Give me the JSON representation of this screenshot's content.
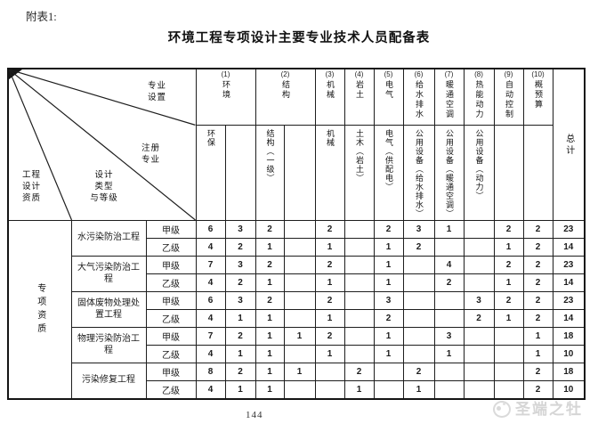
{
  "page": {
    "annex_label": "附表1:",
    "title": "环境工程专项设计主要专业技术人员配备表",
    "page_number": "144",
    "watermark": "圣端之牡"
  },
  "table": {
    "corner": {
      "specialty": "专业\n设置",
      "registered": "注册\n专业",
      "design_type": "设计\n类型\n与等级",
      "qualification": "工程\n设计\n资质"
    },
    "specialty_row": [
      {
        "num": "(1)",
        "name": "环境",
        "span": 2
      },
      {
        "num": "(2)",
        "name": "结构",
        "span": 2
      },
      {
        "num": "(3)",
        "name": "机械",
        "span": 1
      },
      {
        "num": "(4)",
        "name": "岩土",
        "span": 1
      },
      {
        "num": "(5)",
        "name": "电气",
        "span": 1
      },
      {
        "num": "(6)",
        "name": "给水排水",
        "span": 1
      },
      {
        "num": "(7)",
        "name": "暖通空调",
        "span": 1
      },
      {
        "num": "(8)",
        "name": "热能动力",
        "span": 1
      },
      {
        "num": "(9)",
        "name": "自动控制",
        "span": 1
      },
      {
        "num": "(10)",
        "name": "概预算",
        "span": 1
      }
    ],
    "registered_row": [
      "环保",
      "",
      "结构（一级）",
      "",
      "机械",
      "土木（岩土）",
      "电气（供配电）",
      "公用设备（给水排水）",
      "公用设备（暖通空调）",
      "公用设备（动力）",
      "",
      ""
    ],
    "total_label": "总计",
    "qualification_label": "专项资质",
    "groups": [
      {
        "type": "水污染防治工程",
        "rows": [
          {
            "grade": "甲级",
            "values": [
              "6",
              "3",
              "2",
              "",
              "2",
              "",
              "2",
              "3",
              "1",
              "",
              "2",
              "2"
            ],
            "total": "23"
          },
          {
            "grade": "乙级",
            "values": [
              "4",
              "2",
              "1",
              "",
              "1",
              "",
              "1",
              "2",
              "",
              "",
              "1",
              "2"
            ],
            "total": "14"
          }
        ]
      },
      {
        "type": "大气污染防治工程",
        "rows": [
          {
            "grade": "甲级",
            "values": [
              "7",
              "3",
              "2",
              "",
              "2",
              "",
              "1",
              "",
              "4",
              "",
              "2",
              "2"
            ],
            "total": "23"
          },
          {
            "grade": "乙级",
            "values": [
              "4",
              "2",
              "1",
              "",
              "1",
              "",
              "1",
              "",
              "2",
              "",
              "1",
              "2"
            ],
            "total": "14"
          }
        ]
      },
      {
        "type": "固体废物处理处置工程",
        "rows": [
          {
            "grade": "甲级",
            "values": [
              "6",
              "3",
              "2",
              "",
              "2",
              "",
              "3",
              "",
              "",
              "3",
              "2",
              "2"
            ],
            "total": "23"
          },
          {
            "grade": "乙级",
            "values": [
              "4",
              "1",
              "1",
              "",
              "1",
              "",
              "2",
              "",
              "",
              "2",
              "1",
              "2"
            ],
            "total": "14"
          }
        ]
      },
      {
        "type": "物理污染防治工程",
        "rows": [
          {
            "grade": "甲级",
            "values": [
              "7",
              "2",
              "1",
              "1",
              "2",
              "",
              "1",
              "",
              "3",
              "",
              "",
              "1"
            ],
            "total": "18"
          },
          {
            "grade": "乙级",
            "values": [
              "4",
              "1",
              "1",
              "",
              "1",
              "",
              "1",
              "",
              "1",
              "",
              "",
              "1"
            ],
            "total": "10"
          }
        ]
      },
      {
        "type": "污染修复工程",
        "rows": [
          {
            "grade": "甲级",
            "values": [
              "8",
              "2",
              "1",
              "1",
              "",
              "2",
              "",
              "2",
              "",
              "",
              "",
              "2"
            ],
            "total": "18"
          },
          {
            "grade": "乙级",
            "values": [
              "4",
              "1",
              "1",
              "",
              "",
              "1",
              "",
              "1",
              "",
              "",
              "",
              "2"
            ],
            "total": "10"
          }
        ]
      }
    ]
  }
}
